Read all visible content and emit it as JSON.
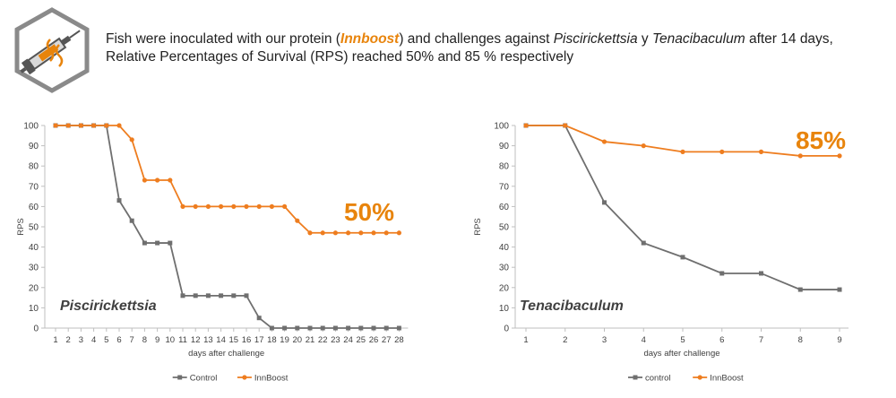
{
  "header": {
    "caption_part1": "Fish were inoculated with our protein (",
    "brand": "Innboost",
    "caption_part2": ") and challenges against ",
    "pathogen1": "Piscirickettsia",
    "caption_part3": " y ",
    "pathogen2": "Tenacibaculum",
    "caption_part4": " after 14 days,",
    "caption_line2": "Relative Percentages of Survival  (RPS) reached 50% and 85 % respectively",
    "logo_icon": "syringe-protein-icon"
  },
  "colors": {
    "control": "#6f6f6f",
    "treatment": "#ee7d1f",
    "highlight": "#e8840c",
    "axis": "#bfbfbf"
  },
  "chart_data": [
    {
      "type": "line",
      "inset_label": "Piscirickettsia",
      "highlight": "50%",
      "xlabel": "days after challenge",
      "ylabel": "RPS",
      "ylim": [
        0,
        100
      ],
      "yticks": [
        0,
        10,
        20,
        30,
        40,
        50,
        60,
        70,
        80,
        90,
        100
      ],
      "x": [
        1,
        2,
        3,
        4,
        5,
        6,
        7,
        8,
        9,
        10,
        11,
        12,
        13,
        14,
        15,
        16,
        17,
        18,
        19,
        20,
        21,
        22,
        23,
        24,
        25,
        26,
        27,
        28
      ],
      "series": [
        {
          "name": "Control",
          "marker": "square",
          "values": [
            100,
            100,
            100,
            100,
            100,
            63,
            53,
            42,
            42,
            42,
            16,
            16,
            16,
            16,
            16,
            16,
            5,
            0,
            0,
            0,
            0,
            0,
            0,
            0,
            0,
            0,
            0,
            0
          ]
        },
        {
          "name": "InnBoost",
          "marker": "circle",
          "values": [
            100,
            100,
            100,
            100,
            100,
            100,
            93,
            73,
            73,
            73,
            60,
            60,
            60,
            60,
            60,
            60,
            60,
            60,
            60,
            53,
            47,
            47,
            47,
            47,
            47,
            47,
            47,
            47
          ]
        }
      ],
      "legend": "bottom-center",
      "grid": false
    },
    {
      "type": "line",
      "inset_label": "Tenacibaculum",
      "highlight": "85%",
      "xlabel": "days after challenge",
      "ylabel": "RPS",
      "ylim": [
        0,
        100
      ],
      "yticks": [
        0,
        10,
        20,
        30,
        40,
        50,
        60,
        70,
        80,
        90,
        100
      ],
      "x": [
        1,
        2,
        3,
        4,
        5,
        6,
        7,
        8,
        9
      ],
      "series": [
        {
          "name": "control",
          "marker": "square",
          "values": [
            100,
            100,
            62,
            42,
            35,
            27,
            27,
            19,
            19
          ]
        },
        {
          "name": "InnBoost",
          "marker": "circle",
          "values": [
            100,
            100,
            92,
            90,
            87,
            87,
            87,
            85,
            85
          ]
        }
      ],
      "legend": "bottom-center",
      "grid": false
    }
  ]
}
